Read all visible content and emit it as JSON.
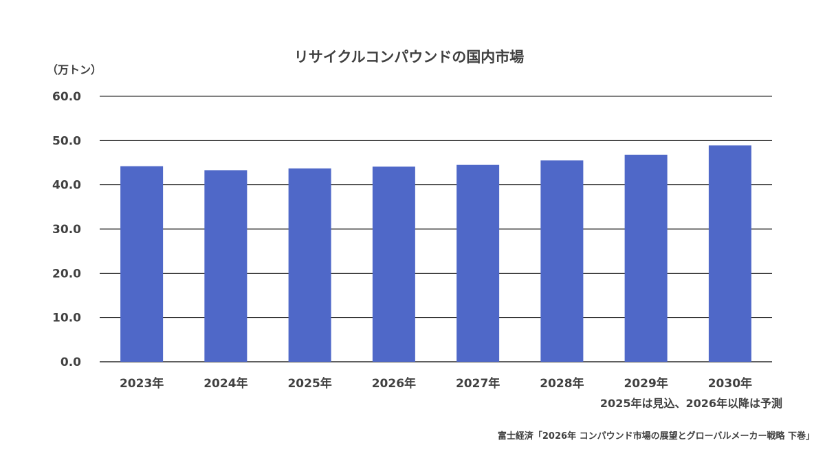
{
  "chart_data": {
    "type": "bar",
    "title": "リサイクルコンパウンドの国内市場",
    "ylabel": "（万トン）",
    "xlabel": "",
    "categories": [
      "2023年",
      "2024年",
      "2025年",
      "2026年",
      "2027年",
      "2028年",
      "2029年",
      "2030年"
    ],
    "values": [
      44.2,
      43.3,
      43.7,
      44.1,
      44.5,
      45.5,
      46.8,
      48.9
    ],
    "ylim": [
      0,
      60
    ],
    "y_ticks": [
      "0.0",
      "10.0",
      "20.0",
      "30.0",
      "40.0",
      "50.0",
      "60.0"
    ],
    "grid": true,
    "bar_color": "#4f68c8",
    "note": "2025年は見込、2026年以降は予測",
    "source": "富士経済「2026年 コンパウンド市場の展望とグローバルメーカー戦略 下巻」"
  }
}
